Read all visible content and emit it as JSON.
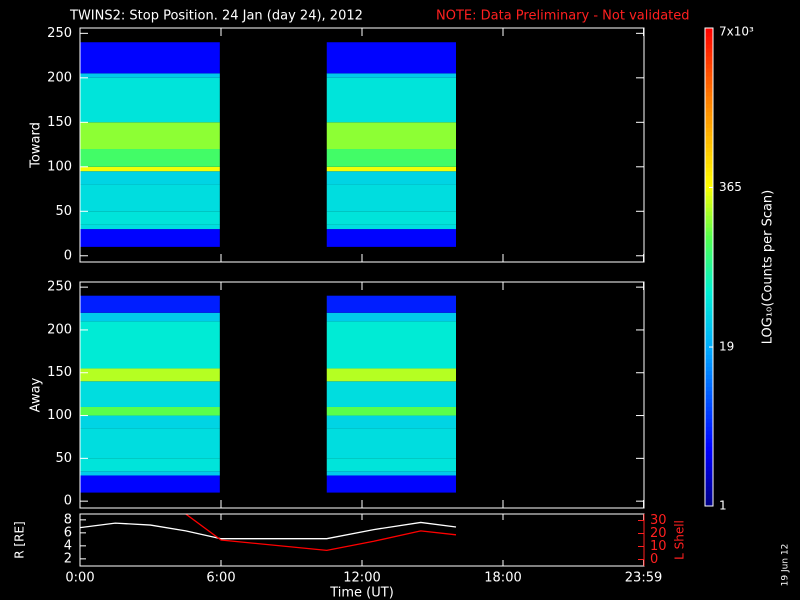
{
  "chart_data": [
    {
      "type": "heatmap",
      "title": "TWINS2: Stop Position. 24 Jan (day  24), 2012",
      "note": "NOTE: Data Preliminary - Not validated",
      "ylabel": "Toward",
      "xlim": [
        0,
        24
      ],
      "ylim": [
        -7,
        256
      ],
      "yticks": [
        0,
        50,
        100,
        150,
        200,
        250
      ],
      "x_edges": [
        [
          0,
          5.95
        ],
        [
          10.5,
          16
        ]
      ],
      "y_edges": [
        10,
        30,
        35,
        50,
        80,
        95,
        100,
        120,
        150,
        200,
        205,
        240
      ],
      "values": [
        [
          3,
          40,
          45,
          40,
          35,
          350,
          120,
          200,
          45,
          30,
          3
        ],
        [
          3,
          40,
          45,
          40,
          35,
          350,
          120,
          200,
          45,
          30,
          3
        ]
      ],
      "colorbar": {
        "label": "LOG₁₀(Counts per Scan)",
        "scale": "log",
        "colormap": "rainbow",
        "zlim": [
          1,
          7000
        ],
        "zticks": [
          1,
          19,
          365,
          {
            "value": 7000,
            "label": "7x10³"
          }
        ]
      }
    },
    {
      "type": "heatmap",
      "ylabel": "Away",
      "xlim": [
        0,
        24
      ],
      "ylim": [
        -8,
        256
      ],
      "yticks": [
        0,
        50,
        100,
        150,
        200,
        250
      ],
      "x_edges": [
        [
          0,
          5.95
        ],
        [
          10.5,
          16
        ]
      ],
      "y_edges": [
        10,
        30,
        35,
        50,
        85,
        100,
        110,
        140,
        155,
        210,
        220,
        240
      ],
      "values": [
        [
          3,
          30,
          45,
          40,
          35,
          150,
          40,
          250,
          50,
          30,
          4
        ],
        [
          3,
          30,
          45,
          40,
          35,
          150,
          40,
          250,
          50,
          30,
          4
        ]
      ]
    },
    {
      "type": "line",
      "xlabel": "Time (UT)",
      "xlim": [
        0,
        24
      ],
      "xticks": [
        {
          "value": 0,
          "label": "0:00"
        },
        {
          "value": 6,
          "label": "6:00"
        },
        {
          "value": 12,
          "label": "12:00"
        },
        {
          "value": 18,
          "label": "18:00"
        },
        {
          "value": 23.98,
          "label": "23:59"
        }
      ],
      "ylabel": "R [RE]",
      "ylim": [
        0.9,
        8.9
      ],
      "yticks": [
        2,
        4,
        6,
        8
      ],
      "y2label": "L Shell",
      "y2lim": [
        -5,
        35
      ],
      "y2ticks": [
        0,
        10,
        20,
        30
      ],
      "series": [
        {
          "color": "#ffffff",
          "x": [
            0,
            1.5,
            3,
            4.5,
            6,
            10.5,
            12.5,
            14.5,
            16
          ],
          "values": [
            6.8,
            7.5,
            7.2,
            6.3,
            5.1,
            5.1,
            6.5,
            7.6,
            6.9
          ]
        },
        {
          "color": "#ff0000",
          "axis": "y2",
          "x": [
            4.5,
            6,
            10.5,
            12.5,
            14.5,
            16
          ],
          "values": [
            35,
            15,
            7,
            14,
            22,
            19
          ]
        }
      ]
    }
  ],
  "footer": {
    "date": "19 Jun 12"
  }
}
